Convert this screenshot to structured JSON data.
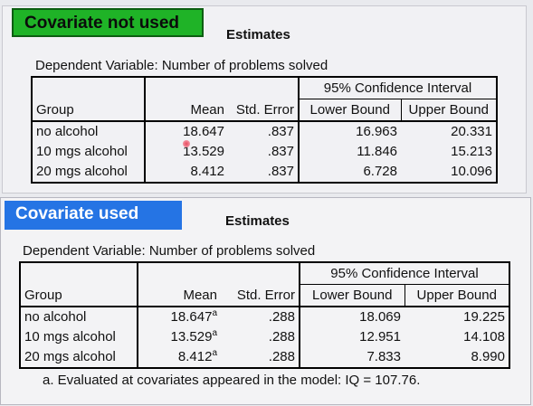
{
  "panel_unused": {
    "tag": "Covariate not used",
    "title": "Estimates",
    "dependent": "Dependent Variable: Number of problems solved",
    "headers": {
      "group": "Group",
      "mean": "Mean",
      "se": "Std. Error",
      "ci": "95% Confidence Interval",
      "lower": "Lower Bound",
      "upper": "Upper Bound"
    },
    "rows": [
      {
        "group": "no alcohol",
        "mean": "18.647",
        "se": ".837",
        "lower": "16.963",
        "upper": "20.331"
      },
      {
        "group": "10 mgs alcohol",
        "mean": "13.529",
        "se": ".837",
        "lower": "11.846",
        "upper": "15.213"
      },
      {
        "group": "20 mgs alcohol",
        "mean": "8.412",
        "se": ".837",
        "lower": "6.728",
        "upper": "10.096"
      }
    ]
  },
  "panel_used": {
    "tag": "Covariate used",
    "title": "Estimates",
    "dependent": "Dependent Variable: Number of problems solved",
    "headers": {
      "group": "Group",
      "mean": "Mean",
      "se": "Std. Error",
      "ci": "95% Confidence Interval",
      "lower": "Lower Bound",
      "upper": "Upper Bound"
    },
    "footnote_mark": "a",
    "rows": [
      {
        "group": "no alcohol",
        "mean": "18.647",
        "se": ".288",
        "lower": "18.069",
        "upper": "19.225"
      },
      {
        "group": "10 mgs alcohol",
        "mean": "13.529",
        "se": ".288",
        "lower": "12.951",
        "upper": "14.108"
      },
      {
        "group": "20 mgs alcohol",
        "mean": "8.412",
        "se": ".288",
        "lower": "7.833",
        "upper": "8.990"
      }
    ],
    "note": "a. Evaluated at covariates appeared in the model: IQ = 107.76."
  },
  "colors": {
    "green_tag": "#1fb327",
    "blue_tag": "#2574e4"
  }
}
